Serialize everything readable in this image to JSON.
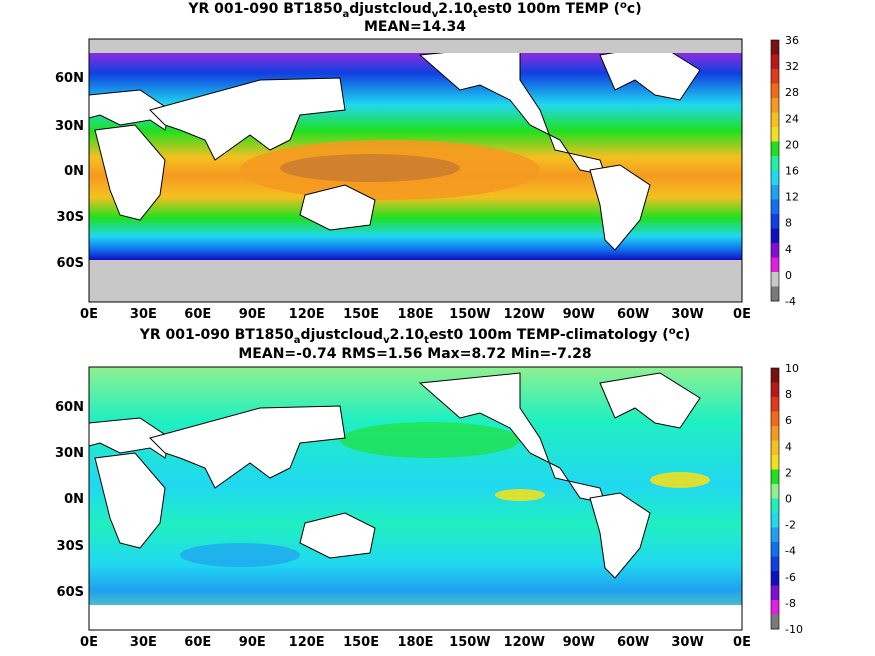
{
  "top": {
    "title_prefix": "YR 001-090 BT1850",
    "title_sub1": "a",
    "title_mid": "djustcloud",
    "title_sub2": "v",
    "title_mid2": "2.10",
    "title_sub3": "t",
    "title_end": "est0 100m TEMP (",
    "title_sup": "o",
    "title_unit": "c)",
    "stats": "MEAN=14.34",
    "colorbar": {
      "ticks": [
        "36",
        "32",
        "28",
        "24",
        "20",
        "16",
        "12",
        "8",
        "4",
        "0",
        "-4"
      ],
      "colors": [
        "#7a1010",
        "#b81a1a",
        "#e03a1a",
        "#f06a1a",
        "#f59a20",
        "#f5c020",
        "#f0e020",
        "#20e020",
        "#20f0a0",
        "#20d8f0",
        "#20a0f0",
        "#1070f0",
        "#1040e0",
        "#1010c0",
        "#8010d0",
        "#e020e0",
        "#c8c8c8",
        "#7a7a7a"
      ]
    }
  },
  "bottom": {
    "title_prefix": "YR 001-090 BT1850",
    "title_sub1": "a",
    "title_mid": "djustcloud",
    "title_sub2": "v",
    "title_mid2": "2.10",
    "title_sub3": "t",
    "title_end": "est0 100m TEMP-climatology (",
    "title_sup": "o",
    "title_unit": "c)",
    "stats": "MEAN=-0.74   RMS=1.56   Max=8.72   Min=-7.28",
    "colorbar": {
      "ticks": [
        "10",
        "8",
        "6",
        "4",
        "2",
        "0",
        "-2",
        "-4",
        "-6",
        "-8",
        "-10"
      ],
      "colors": [
        "#7a1010",
        "#b81a1a",
        "#e03a1a",
        "#f06a1a",
        "#f59a20",
        "#f5c020",
        "#f0e020",
        "#20e020",
        "#90f090",
        "#20f0c0",
        "#20d8f0",
        "#20a0f0",
        "#1070f0",
        "#1040e0",
        "#1010c0",
        "#8010d0",
        "#e020e0",
        "#7a7a7a"
      ]
    }
  },
  "lat_labels": [
    "60N",
    "30N",
    "0N",
    "30S",
    "60S"
  ],
  "lon_labels": [
    "0E",
    "30E",
    "60E",
    "90E",
    "120E",
    "150E",
    "180E",
    "150W",
    "120W",
    "90W",
    "60W",
    "30W",
    "0E"
  ]
}
